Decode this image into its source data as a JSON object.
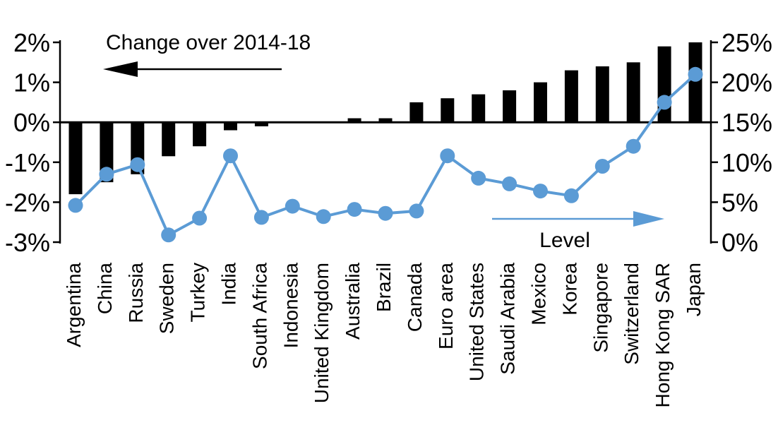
{
  "chart_data": {
    "type": "combo_bar_line",
    "title": "",
    "categories": [
      "Argentina",
      "China",
      "Russia",
      "Sweden",
      "Turkey",
      "India",
      "South Africa",
      "Indonesia",
      "United Kingdom",
      "Australia",
      "Brazil",
      "Canada",
      "Euro area",
      "United States",
      "Saudi Arabia",
      "Mexico",
      "Korea",
      "Singapore",
      "Switzerland",
      "Hong Kong SAR",
      "Japan"
    ],
    "series": [
      {
        "name": "Change over 2014-18",
        "type": "bar",
        "axis": "left",
        "color": "#000000",
        "values": [
          -1.8,
          -1.5,
          -1.3,
          -0.85,
          -0.6,
          -0.2,
          -0.1,
          0,
          0,
          0.1,
          0.1,
          0.5,
          0.6,
          0.7,
          0.8,
          1.0,
          1.3,
          1.4,
          1.5,
          1.9,
          2.0
        ]
      },
      {
        "name": "Level",
        "type": "line",
        "axis": "right",
        "color": "#5B9BD5",
        "values": [
          4.6,
          8.5,
          9.7,
          0.9,
          3.0,
          10.8,
          3.1,
          4.5,
          3.2,
          4.1,
          3.6,
          3.9,
          10.8,
          8.0,
          7.3,
          6.4,
          5.8,
          9.5,
          12.0,
          17.5,
          21.0
        ]
      }
    ],
    "left_axis": {
      "min": -3,
      "max": 2,
      "step": 1,
      "tick_values": [
        2,
        1,
        0,
        -1,
        -2,
        -3
      ],
      "tick_labels": [
        "2%",
        "1%",
        "0%",
        "-1%",
        "-2%",
        "-3%"
      ],
      "unit": "%"
    },
    "right_axis": {
      "min": 0,
      "max": 25,
      "step": 5,
      "tick_values": [
        25,
        20,
        15,
        10,
        5,
        0
      ],
      "tick_labels": [
        "25%",
        "20%",
        "15%",
        "10%",
        "5%",
        "0%"
      ],
      "unit": "%"
    },
    "annotations": [
      {
        "text": "Change over 2014-18",
        "arrow": "left",
        "line_color": "#000000",
        "text_color": "#000000"
      },
      {
        "text": "Level",
        "arrow": "right",
        "line_color": "#5B9BD5",
        "text_color": "#000000"
      }
    ],
    "grid": false,
    "legend": "none",
    "colors": {
      "bar": "#000000",
      "line": "#5B9BD5",
      "axis": "#000000",
      "background": "#ffffff"
    }
  }
}
